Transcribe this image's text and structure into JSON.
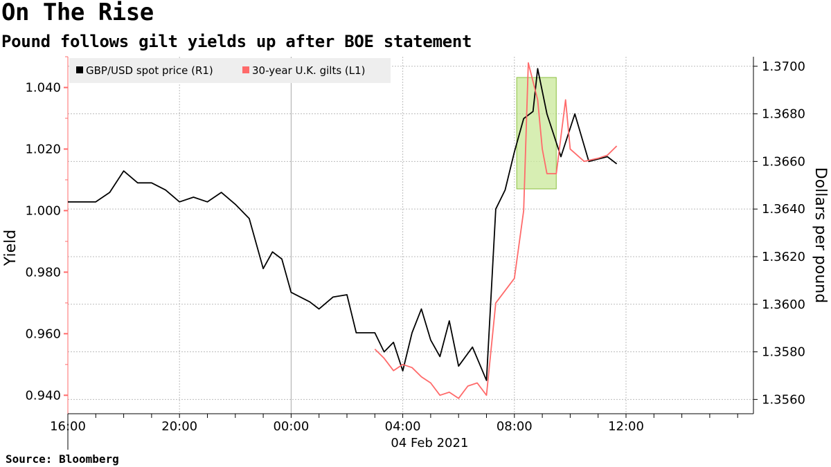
{
  "title": "On The Rise",
  "subtitle": "Pound follows gilt yields up after BOE statement",
  "source": "Source: Bloomberg",
  "chart_data": {
    "type": "line",
    "x_tick_labels": [
      "20:00",
      "00:00",
      "04:00",
      "08:00",
      "12:00",
      "16:00"
    ],
    "x_date_label": "04 Feb 2021",
    "left_axis": {
      "label": "Yield",
      "ticks": [
        "0.940",
        "0.960",
        "0.980",
        "1.000",
        "1.020",
        "1.040"
      ],
      "range": [
        0.934,
        1.05
      ]
    },
    "right_axis": {
      "label": "Dollars per pound",
      "ticks": [
        "1.3560",
        "1.3580",
        "1.3600",
        "1.3620",
        "1.3640",
        "1.3660",
        "1.3680",
        "1.3700"
      ],
      "range": [
        1.3554,
        1.3704
      ]
    },
    "grid": true,
    "legend_position": "top-left",
    "highlight": {
      "x_range": [
        "08:05",
        "09:30"
      ],
      "color": "#c9e89a"
    },
    "series": [
      {
        "name": "GBP/USD spot price (R1)",
        "axis": "right",
        "color": "#000000",
        "points": [
          [
            "16:00",
            1.3643
          ],
          [
            "17:00",
            1.3643
          ],
          [
            "17:30",
            1.3647
          ],
          [
            "18:00",
            1.3656
          ],
          [
            "18:30",
            1.3651
          ],
          [
            "19:00",
            1.3651
          ],
          [
            "19:30",
            1.3648
          ],
          [
            "20:00",
            1.3643
          ],
          [
            "20:30",
            1.3645
          ],
          [
            "21:00",
            1.3643
          ],
          [
            "21:30",
            1.3647
          ],
          [
            "22:00",
            1.3642
          ],
          [
            "22:30",
            1.3636
          ],
          [
            "23:00",
            1.3615
          ],
          [
            "23:20",
            1.3622
          ],
          [
            "23:40",
            1.3619
          ],
          [
            "00:00",
            1.3605
          ],
          [
            "00:40",
            1.3601
          ],
          [
            "01:00",
            1.3598
          ],
          [
            "01:30",
            1.3603
          ],
          [
            "02:00",
            1.3604
          ],
          [
            "02:20",
            1.3588
          ],
          [
            "03:00",
            1.3588
          ],
          [
            "03:20",
            1.358
          ],
          [
            "03:40",
            1.3584
          ],
          [
            "04:00",
            1.3572
          ],
          [
            "04:20",
            1.3588
          ],
          [
            "04:40",
            1.3598
          ],
          [
            "05:00",
            1.3585
          ],
          [
            "05:20",
            1.3578
          ],
          [
            "05:40",
            1.3593
          ],
          [
            "06:00",
            1.3574
          ],
          [
            "06:30",
            1.3582
          ],
          [
            "07:00",
            1.3568
          ],
          [
            "07:20",
            1.364
          ],
          [
            "07:40",
            1.3648
          ],
          [
            "08:00",
            1.3664
          ],
          [
            "08:20",
            1.3678
          ],
          [
            "08:40",
            1.3681
          ],
          [
            "08:50",
            1.3699
          ],
          [
            "09:10",
            1.368
          ],
          [
            "09:40",
            1.3662
          ],
          [
            "10:10",
            1.368
          ],
          [
            "10:40",
            1.366
          ],
          [
            "11:00",
            1.3661
          ],
          [
            "11:20",
            1.3662
          ],
          [
            "11:40",
            1.3659
          ]
        ]
      },
      {
        "name": "30-year U.K. gilts (L1)",
        "axis": "left",
        "color": "#ff6a6a",
        "points": [
          [
            "03:00",
            0.955
          ],
          [
            "03:20",
            0.952
          ],
          [
            "03:40",
            0.948
          ],
          [
            "04:00",
            0.95
          ],
          [
            "04:20",
            0.949
          ],
          [
            "04:40",
            0.946
          ],
          [
            "05:00",
            0.944
          ],
          [
            "05:20",
            0.94
          ],
          [
            "05:40",
            0.941
          ],
          [
            "06:00",
            0.939
          ],
          [
            "06:20",
            0.943
          ],
          [
            "06:40",
            0.944
          ],
          [
            "07:00",
            0.94
          ],
          [
            "07:20",
            0.97
          ],
          [
            "07:40",
            0.974
          ],
          [
            "08:00",
            0.978
          ],
          [
            "08:20",
            1.0
          ],
          [
            "08:30",
            1.048
          ],
          [
            "08:50",
            1.036
          ],
          [
            "09:00",
            1.02
          ],
          [
            "09:10",
            1.012
          ],
          [
            "09:30",
            1.012
          ],
          [
            "09:50",
            1.036
          ],
          [
            "10:00",
            1.02
          ],
          [
            "10:30",
            1.016
          ],
          [
            "11:00",
            1.017
          ],
          [
            "11:20",
            1.018
          ],
          [
            "11:40",
            1.021
          ]
        ]
      }
    ]
  }
}
